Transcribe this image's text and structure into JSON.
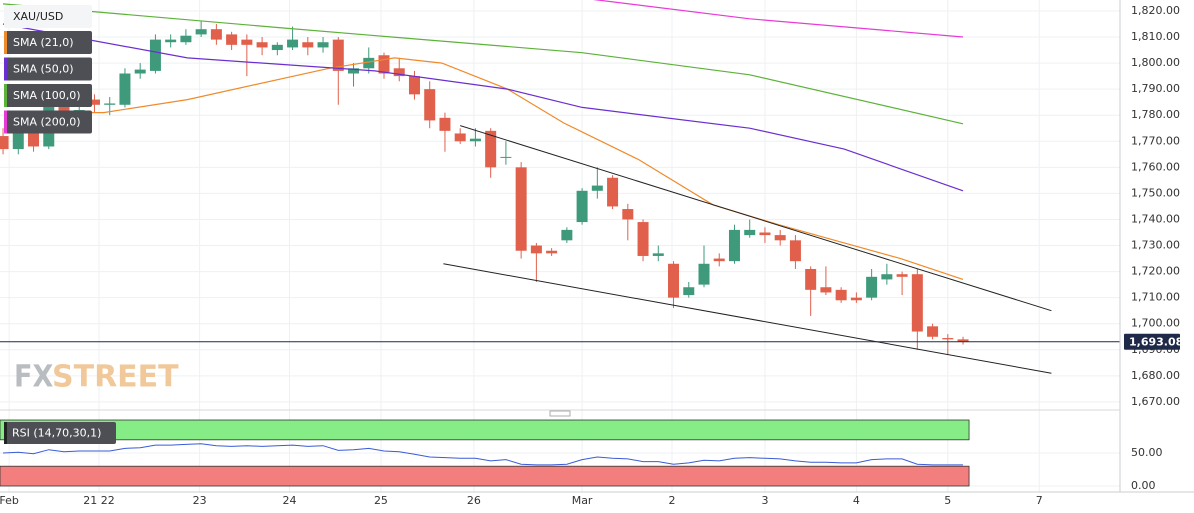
{
  "chart_data": [
    {
      "type": "candlestick",
      "title": "XAU/USD",
      "open": [
        1772,
        1767,
        1773,
        1768,
        1786,
        1781,
        1786,
        1784,
        1784,
        1796,
        1797,
        1808,
        1808,
        1811,
        1813,
        1811,
        1809,
        1808,
        1805,
        1806,
        1808,
        1806,
        1809,
        1796,
        1798,
        1803,
        1798,
        1795,
        1790,
        1779,
        1773,
        1770,
        1774,
        1764,
        1760,
        1730,
        1728,
        1732,
        1739,
        1751,
        1756,
        1744,
        1739,
        1726,
        1723,
        1711,
        1715,
        1725,
        1724,
        1734,
        1735,
        1734,
        1732,
        1721,
        1714,
        1713,
        1710,
        1710,
        1717,
        1719,
        1719,
        1699,
        1694.5,
        1694
      ],
      "high": [
        1775,
        1774,
        1776,
        1791,
        1789,
        1786,
        1788,
        1787,
        1798,
        1800,
        1811,
        1811,
        1813,
        1816,
        1815,
        1812,
        1811,
        1810,
        1808,
        1814,
        1810,
        1810,
        1810,
        1800,
        1806,
        1804,
        1802,
        1797,
        1793,
        1781,
        1775,
        1775,
        1775,
        1770,
        1762,
        1731,
        1729,
        1737,
        1752,
        1760,
        1757,
        1746,
        1740,
        1730,
        1724,
        1716,
        1730,
        1727,
        1738,
        1740,
        1737,
        1736,
        1734,
        1722,
        1722,
        1714,
        1712,
        1721,
        1723,
        1720,
        1721,
        1700,
        1696,
        1695
      ],
      "low": [
        1765,
        1765,
        1766,
        1767,
        1777,
        1779,
        1781,
        1780,
        1783,
        1794,
        1796,
        1806,
        1807,
        1810,
        1807,
        1805,
        1795,
        1803,
        1803,
        1805,
        1803,
        1804,
        1784,
        1791,
        1796,
        1794,
        1793,
        1786,
        1775,
        1766,
        1769,
        1768,
        1756,
        1761,
        1725,
        1716,
        1726,
        1731,
        1738,
        1748,
        1744,
        1732,
        1724,
        1724,
        1706,
        1710,
        1714,
        1722,
        1723,
        1733,
        1731,
        1730,
        1721,
        1703,
        1711,
        1708,
        1708,
        1709,
        1715,
        1711,
        1690,
        1694,
        1688,
        1692
      ],
      "close": [
        1767,
        1773,
        1768,
        1788,
        1779,
        1782,
        1784,
        1784.5,
        1796,
        1797.5,
        1809,
        1809,
        1810.5,
        1813,
        1809,
        1807,
        1807,
        1806,
        1807,
        1809,
        1806,
        1808,
        1797,
        1798,
        1802,
        1796,
        1795,
        1788,
        1778,
        1774,
        1770,
        1771,
        1760,
        1764,
        1728,
        1727,
        1727,
        1736,
        1751,
        1753,
        1745,
        1740,
        1726,
        1727,
        1710,
        1714,
        1723,
        1724,
        1736,
        1736,
        1734,
        1732,
        1724,
        1713,
        1712,
        1709,
        1709,
        1718,
        1719,
        1718,
        1697,
        1695,
        1694,
        1693.08
      ],
      "up_color": "#3f9a7c",
      "down_color": "#e0604c",
      "ylim": [
        1666.9,
        1824.2
      ],
      "yticks": [
        {
          "value": 1670,
          "label": "1,670.00"
        },
        {
          "value": 1680,
          "label": "1,680.00"
        },
        {
          "value": 1690,
          "label": "1,690.00"
        },
        {
          "value": 1700,
          "label": "1,700.00"
        },
        {
          "value": 1710,
          "label": "1,710.00"
        },
        {
          "value": 1720,
          "label": "1,720.00"
        },
        {
          "value": 1730,
          "label": "1,730.00"
        },
        {
          "value": 1740,
          "label": "1,740.00"
        },
        {
          "value": 1750,
          "label": "1,750.00"
        },
        {
          "value": 1760,
          "label": "1,760.00"
        },
        {
          "value": 1770,
          "label": "1,770.00"
        },
        {
          "value": 1780,
          "label": "1,780.00"
        },
        {
          "value": 1790,
          "label": "1,790.00"
        },
        {
          "value": 1800,
          "label": "1,800.00"
        },
        {
          "value": 1810,
          "label": "1,810.00"
        },
        {
          "value": 1820,
          "label": "1,820.00"
        }
      ],
      "xlim": [
        -0.2,
        73.3
      ],
      "xticks": [
        {
          "value": 0.4,
          "label": "Feb"
        },
        {
          "value": 6.3,
          "label": "21 22"
        },
        {
          "value": 12.9,
          "label": "23"
        },
        {
          "value": 18.8,
          "label": "24"
        },
        {
          "value": 24.8,
          "label": "25"
        },
        {
          "value": 30.9,
          "label": "26"
        },
        {
          "value": 38,
          "label": "Mar"
        },
        {
          "value": 43.9,
          "label": "2"
        },
        {
          "value": 50,
          "label": "3"
        },
        {
          "value": 56,
          "label": "4"
        },
        {
          "value": 62,
          "label": "5"
        },
        {
          "value": 68,
          "label": "7"
        }
      ],
      "sma": [
        {
          "name": "SMA (21,0)",
          "color": "#ef8a2b",
          "x": [
            3.5,
            6.6,
            12.1,
            21.4,
            25.7,
            28.8,
            33.1,
            36.8,
            41.7,
            46.6,
            50.9,
            55.2,
            58.9,
            63
          ],
          "values": [
            1781,
            1781,
            1786,
            1798,
            1802,
            1800,
            1790,
            1777,
            1763,
            1745.6,
            1738,
            1731,
            1725,
            1717
          ]
        },
        {
          "name": "SMA (50,0)",
          "color": "#6a2fd0",
          "x": [
            0,
            12.1,
            24.4,
            33.1,
            38,
            49,
            55.2,
            63
          ],
          "values": [
            1815,
            1802,
            1797,
            1790,
            1783,
            1775,
            1767,
            1751
          ]
        },
        {
          "name": "SMA (100,0)",
          "color": "#5cb23a",
          "x": [
            0,
            18.3,
            38,
            49,
            63
          ],
          "values": [
            1822.7,
            1813.5,
            1804,
            1795.5,
            1776.7
          ]
        },
        {
          "name": "SMA (200,0)",
          "color": "#e83ad6",
          "x": [
            38.6,
            49,
            63
          ],
          "values": [
            1824.5,
            1817,
            1810
          ]
        }
      ],
      "trendlines": [
        {
          "x": [
            30,
            68.8
          ],
          "values": [
            1776,
            1705
          ]
        },
        {
          "x": [
            28.9,
            68.8
          ],
          "values": [
            1723,
            1681
          ]
        }
      ],
      "last_price": {
        "value": 1693.08,
        "label": "1,693.08"
      },
      "watermark": [
        "FX",
        "STREET"
      ]
    },
    {
      "type": "line",
      "name": "RSI (14,70,30,1)",
      "color": "#3a5bd6",
      "values": [
        50,
        51,
        49,
        55,
        52,
        53,
        53,
        53,
        57,
        58,
        62,
        62,
        63,
        64,
        61,
        60,
        61,
        60,
        61,
        62,
        60,
        61,
        54,
        55,
        57,
        53,
        52,
        48,
        44,
        43,
        42,
        42,
        38,
        40,
        33,
        32,
        32,
        33,
        40,
        44,
        42,
        41,
        37,
        37,
        33,
        35,
        39,
        38,
        42,
        43,
        42,
        41,
        38,
        36,
        36,
        35,
        35,
        40,
        41,
        41,
        33,
        32,
        32,
        32
      ],
      "upper_band": [
        70,
        100
      ],
      "lower_band": [
        0,
        30
      ],
      "upper_color": "#86ec86",
      "lower_color": "#f27e7e",
      "ylim": [
        -9.1,
        107.6
      ],
      "yticks": [
        {
          "value": 0,
          "label": "0.00"
        },
        {
          "value": 50,
          "label": "50.00"
        }
      ]
    }
  ]
}
